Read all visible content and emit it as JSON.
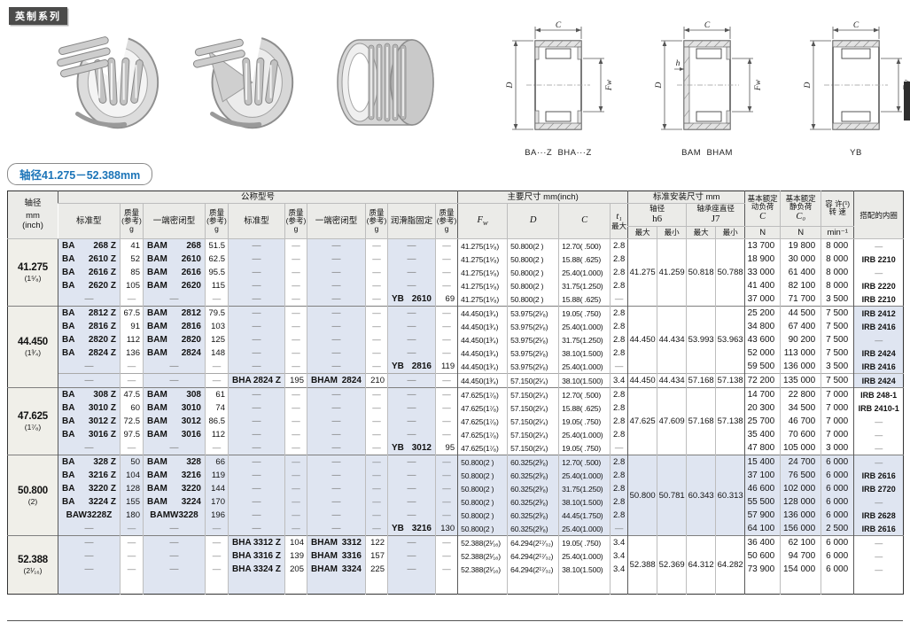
{
  "page": {
    "series_badge": "英制系列",
    "range_pill": "轴径41.275－52.388mm"
  },
  "colors": {
    "accent_blue": "#1b74b8",
    "row_tint": "#dfe5f1",
    "header_bg": "#ebebe8",
    "shaft_col_bg": "#f0efe9",
    "badge_bg": "#4b4b4a"
  },
  "diagrams": {
    "dim_c": "C",
    "dim_d": "D",
    "dim_fw": "Fw",
    "dim_h": "h",
    "labels": [
      "BA···Z  BHA···Z",
      "BAM  BHAM",
      "YB"
    ]
  },
  "table": {
    "headers": {
      "shaft": "轴径",
      "shaft_unit1": "mm",
      "shaft_unit2": "(inch)",
      "nominal": "公称型号",
      "std": "标准型",
      "sealed": "一端密闭型",
      "grease": "润滑脂固定",
      "mass1": "质量",
      "mass2": "(参考)",
      "mass3": "g",
      "main_dims": "主要尺寸  mm(inch)",
      "fw_main": "F",
      "fw_sub": "w",
      "d": "D",
      "c": "C",
      "t1": "t₁",
      "t1max": "最大",
      "mount": "标准安装尺寸  mm",
      "mount_shaft": "轴径",
      "mount_h6": "h6",
      "mount_housing": "轴承座直径",
      "mount_j7": "J7",
      "max": "最大",
      "min": "最小",
      "dyn1": "基本额定",
      "dyn2": "动负荷",
      "dyn_c": "C",
      "stat1": "基本额定",
      "stat2": "静负荷",
      "stat_c0": "C₀",
      "n": "N",
      "speed1": "容 许(¹)",
      "speed2": "转 速",
      "speed_unit": "min⁻¹",
      "inner_ring": "搭配的内圈"
    },
    "blocks": [
      {
        "shaft": "41.275",
        "frac": "(1⁵⁄₈)",
        "tint": "none",
        "bands": [
          {
            "mount": [
              "41.275",
              "41.259",
              "50.818",
              "50.788"
            ],
            "rows": [
              [
                "BA 268 Z",
                "41",
                "BAM 268",
                "51.5",
                "—",
                "—",
                "—",
                "—",
                "—",
                "—",
                "41.275(1⁵⁄₈)",
                "50.800(2 )",
                "12.70( .500)",
                "2.8",
                "13 700",
                "19 800",
                "8 000",
                "—"
              ],
              [
                "BA 2610 Z",
                "52",
                "BAM 2610",
                "62.5",
                "—",
                "—",
                "—",
                "—",
                "—",
                "—",
                "41.275(1⁵⁄₈)",
                "50.800(2 )",
                "15.88( .625)",
                "2.8",
                "18 900",
                "30 000",
                "8 000",
                "IRB 2210"
              ],
              [
                "BA 2616 Z",
                "85",
                "BAM 2616",
                "95.5",
                "—",
                "—",
                "—",
                "—",
                "—",
                "—",
                "41.275(1⁵⁄₈)",
                "50.800(2 )",
                "25.40(1.000)",
                "2.8",
                "33 000",
                "61 400",
                "8 000",
                "—"
              ],
              [
                "BA 2620 Z",
                "105",
                "BAM 2620",
                "115",
                "—",
                "—",
                "—",
                "—",
                "—",
                "—",
                "41.275(1⁵⁄₈)",
                "50.800(2 )",
                "31.75(1.250)",
                "2.8",
                "41 400",
                "82 100",
                "8 000",
                "IRB 2220"
              ],
              [
                "—",
                "—",
                "—",
                "—",
                "—",
                "—",
                "—",
                "—",
                "YB 2610",
                "69",
                "41.275(1⁵⁄₈)",
                "50.800(2 )",
                "15.88( .625)",
                "—",
                "37 000",
                "71 700",
                "3 500",
                "IRB 2210"
              ]
            ]
          }
        ]
      },
      {
        "shaft": "44.450",
        "frac": "(1³⁄₄)",
        "tint": "irb",
        "bands": [
          {
            "mount": [
              "44.450",
              "44.434",
              "53.993",
              "53.963"
            ],
            "rows": [
              [
                "BA 2812 Z",
                "67.5",
                "BAM 2812",
                "79.5",
                "—",
                "—",
                "—",
                "—",
                "—",
                "—",
                "44.450(1³⁄₄)",
                "53.975(2¹⁄₈)",
                "19.05( .750)",
                "2.8",
                "25 200",
                "44 500",
                "7 500",
                "IRB 2412"
              ],
              [
                "BA 2816 Z",
                "91",
                "BAM 2816",
                "103",
                "—",
                "—",
                "—",
                "—",
                "—",
                "—",
                "44.450(1³⁄₄)",
                "53.975(2¹⁄₈)",
                "25.40(1.000)",
                "2.8",
                "34 800",
                "67 400",
                "7 500",
                "IRB 2416"
              ],
              [
                "BA 2820 Z",
                "112",
                "BAM 2820",
                "125",
                "—",
                "—",
                "—",
                "—",
                "—",
                "—",
                "44.450(1³⁄₄)",
                "53.975(2¹⁄₈)",
                "31.75(1.250)",
                "2.8",
                "43 600",
                "90 200",
                "7 500",
                "—"
              ],
              [
                "BA 2824 Z",
                "136",
                "BAM 2824",
                "148",
                "—",
                "—",
                "—",
                "—",
                "—",
                "—",
                "44.450(1³⁄₄)",
                "53.975(2¹⁄₈)",
                "38.10(1.500)",
                "2.8",
                "52 000",
                "113 000",
                "7 500",
                "IRB 2424"
              ],
              [
                "—",
                "—",
                "—",
                "—",
                "—",
                "—",
                "—",
                "—",
                "YB 2816",
                "119",
                "44.450(1³⁄₄)",
                "53.975(2¹⁄₈)",
                "25.40(1.000)",
                "—",
                "59 500",
                "136 000",
                "3 500",
                "IRB 2416"
              ]
            ]
          },
          {
            "mount": [
              "44.450",
              "44.434",
              "57.168",
              "57.138"
            ],
            "rows": [
              [
                "—",
                "—",
                "—",
                "—",
                "BHA 2824 Z",
                "195",
                "BHAM 2824",
                "210",
                "—",
                "—",
                "44.450(1³⁄₄)",
                "57.150(2¹⁄₄)",
                "38.10(1.500)",
                "3.4",
                "72 200",
                "135 000",
                "7 500",
                "IRB 2424"
              ]
            ]
          }
        ]
      },
      {
        "shaft": "47.625",
        "frac": "(1⁷⁄₈)",
        "tint": "none",
        "bands": [
          {
            "mount": [
              "47.625",
              "47.609",
              "57.168",
              "57.138"
            ],
            "rows": [
              [
                "BA 308 Z",
                "47.5",
                "BAM 308",
                "61",
                "—",
                "—",
                "—",
                "—",
                "—",
                "—",
                "47.625(1⁷⁄₈)",
                "57.150(2¹⁄₄)",
                "12.70( .500)",
                "2.8",
                "14 700",
                "22 800",
                "7 000",
                "IRB 248-1"
              ],
              [
                "BA 3010 Z",
                "60",
                "BAM 3010",
                "74",
                "—",
                "—",
                "—",
                "—",
                "—",
                "—",
                "47.625(1⁷⁄₈)",
                "57.150(2¹⁄₄)",
                "15.88( .625)",
                "2.8",
                "20 300",
                "34 500",
                "7 000",
                "IRB 2410-1"
              ],
              [
                "BA 3012 Z",
                "72.5",
                "BAM 3012",
                "86.5",
                "—",
                "—",
                "—",
                "—",
                "—",
                "—",
                "47.625(1⁷⁄₈)",
                "57.150(2¹⁄₄)",
                "19.05( .750)",
                "2.8",
                "25 700",
                "46 700",
                "7 000",
                "—"
              ],
              [
                "BA 3016 Z",
                "97.5",
                "BAM 3016",
                "112",
                "—",
                "—",
                "—",
                "—",
                "—",
                "—",
                "47.625(1⁷⁄₈)",
                "57.150(2¹⁄₄)",
                "25.40(1.000)",
                "2.8",
                "35 400",
                "70 600",
                "7 000",
                "—"
              ],
              [
                "—",
                "—",
                "—",
                "—",
                "—",
                "—",
                "—",
                "—",
                "YB 3012",
                "95",
                "47.625(1⁷⁄₈)",
                "57.150(2¹⁄₄)",
                "19.05( .750)",
                "—",
                "47 800",
                "105 000",
                "3 000",
                "—"
              ]
            ]
          }
        ]
      },
      {
        "shaft": "50.800",
        "frac": "(2)",
        "tint": "all",
        "bands": [
          {
            "mount": [
              "50.800",
              "50.781",
              "60.343",
              "60.313"
            ],
            "rows": [
              [
                "BA 328 Z",
                "50",
                "BAM 328",
                "66",
                "—",
                "—",
                "—",
                "—",
                "—",
                "—",
                "50.800(2 )",
                "60.325(2³⁄₈)",
                "12.70( .500)",
                "2.8",
                "15 400",
                "24 700",
                "6 000",
                "—"
              ],
              [
                "BA 3216 Z",
                "104",
                "BAM 3216",
                "119",
                "—",
                "—",
                "—",
                "—",
                "—",
                "—",
                "50.800(2 )",
                "60.325(2³⁄₈)",
                "25.40(1.000)",
                "2.8",
                "37 100",
                "76 500",
                "6 000",
                "IRB 2616"
              ],
              [
                "BA 3220 Z",
                "128",
                "BAM 3220",
                "144",
                "—",
                "—",
                "—",
                "—",
                "—",
                "—",
                "50.800(2 )",
                "60.325(2³⁄₈)",
                "31.75(1.250)",
                "2.8",
                "46 600",
                "102 000",
                "6 000",
                "IRB 2720"
              ],
              [
                "BA 3224 Z",
                "155",
                "BAM 3224",
                "170",
                "—",
                "—",
                "—",
                "—",
                "—",
                "—",
                "50.800(2 )",
                "60.325(2³⁄₈)",
                "38.10(1.500)",
                "2.8",
                "55 500",
                "128 000",
                "6 000",
                "—"
              ],
              [
                "BAW3228Z",
                "180",
                "BAMW3228",
                "196",
                "—",
                "—",
                "—",
                "—",
                "—",
                "—",
                "50.800(2 )",
                "60.325(2³⁄₈)",
                "44.45(1.750)",
                "2.8",
                "57 900",
                "136 000",
                "6 000",
                "IRB 2628"
              ],
              [
                "—",
                "—",
                "—",
                "—",
                "—",
                "—",
                "—",
                "—",
                "YB 3216",
                "130",
                "50.800(2 )",
                "60.325(2³⁄₈)",
                "25.40(1.000)",
                "—",
                "64 100",
                "156 000",
                "2 500",
                "IRB 2616"
              ]
            ]
          }
        ]
      },
      {
        "shaft": "52.388",
        "frac": "(2¹⁄₁₆)",
        "tint": "none",
        "pad": 20,
        "bands": [
          {
            "mount": [
              "52.388",
              "52.369",
              "64.312",
              "64.282"
            ],
            "rows": [
              [
                "—",
                "—",
                "—",
                "—",
                "BHA 3312 Z",
                "104",
                "BHAM 3312",
                "122",
                "—",
                "—",
                "52.388(2¹⁄₁₆)",
                "64.294(2¹⁷⁄₃₂)",
                "19.05( .750)",
                "3.4",
                "36 400",
                "62 100",
                "6 000",
                "—"
              ],
              [
                "—",
                "—",
                "—",
                "—",
                "BHA 3316 Z",
                "139",
                "BHAM 3316",
                "157",
                "—",
                "—",
                "52.388(2¹⁄₁₆)",
                "64.294(2¹⁷⁄₃₂)",
                "25.40(1.000)",
                "3.4",
                "50 600",
                "94 700",
                "6 000",
                "—"
              ],
              [
                "—",
                "—",
                "—",
                "—",
                "BHA 3324 Z",
                "205",
                "BHAM 3324",
                "225",
                "—",
                "—",
                "52.388(2¹⁄₁₆)",
                "64.294(2¹⁷⁄₃₂)",
                "38.10(1.500)",
                "3.4",
                "73 900",
                "154 000",
                "6 000",
                "—"
              ]
            ]
          }
        ]
      }
    ]
  }
}
